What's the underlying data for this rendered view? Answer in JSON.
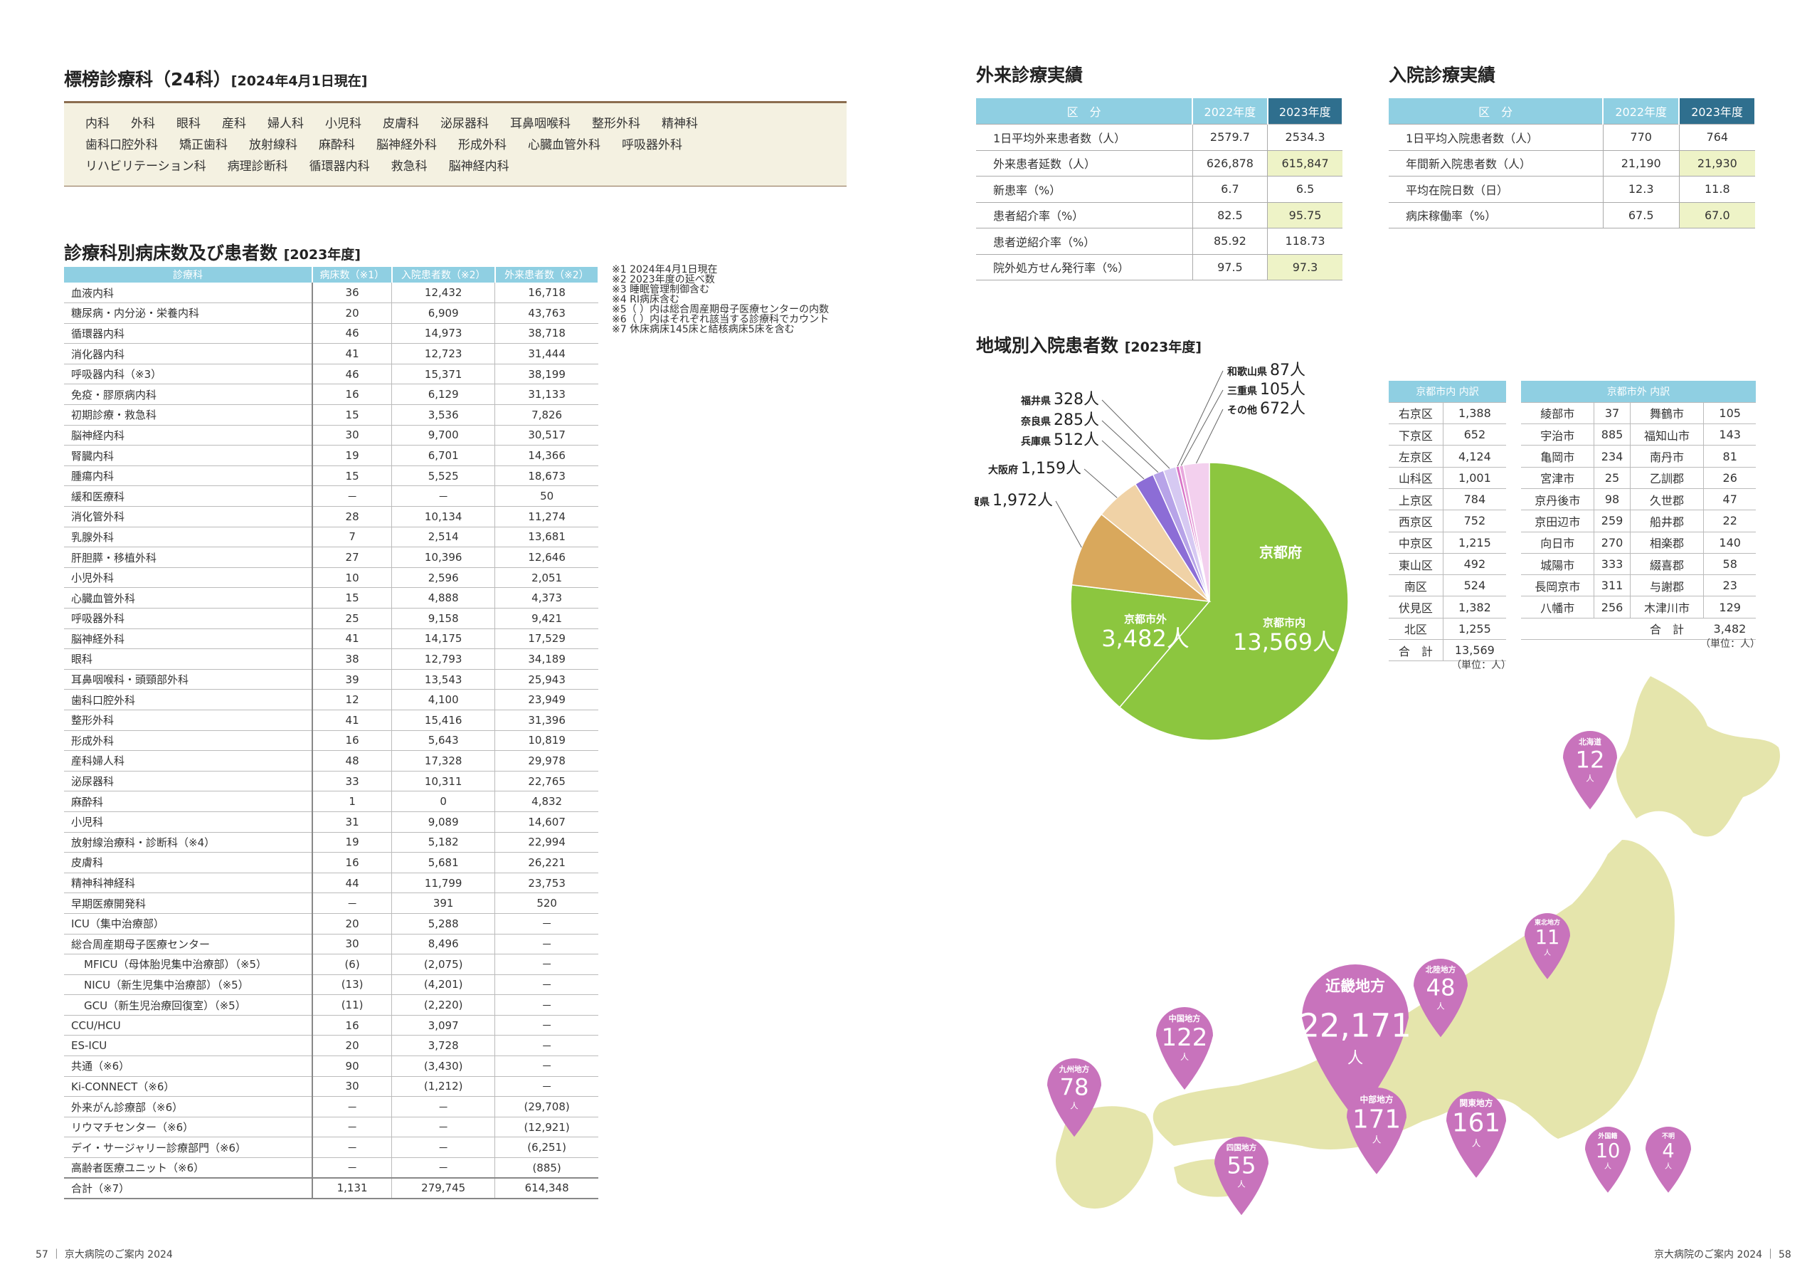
{
  "sec1": {
    "title": "標榜診療科（24科）",
    "note": "[2024年4月1日現在]"
  },
  "departments": [
    [
      "内科",
      "外科",
      "眼科",
      "産科",
      "婦人科",
      "小児科",
      "皮膚科",
      "泌尿器科",
      "耳鼻咽喉科",
      "整形外科",
      "精神科"
    ],
    [
      "歯科口腔外科",
      "矯正歯科",
      "放射線科",
      "麻酔科",
      "脳神経外科",
      "形成外科",
      "心臓血管外科",
      "呼吸器外科"
    ],
    [
      "リハビリテーション科",
      "病理診断科",
      "循環器内科",
      "救急科",
      "脳神経内科"
    ]
  ],
  "sec2": {
    "title": "診療科別病床数及び患者数",
    "note": "[2023年度]"
  },
  "dept_table": {
    "headers": [
      "診療科",
      "病床数（※1）",
      "入院患者数（※2）",
      "外来患者数（※2）"
    ],
    "rows": [
      [
        "血液内科",
        "36",
        "12,432",
        "16,718"
      ],
      [
        "糖尿病・内分泌・栄養内科",
        "20",
        "6,909",
        "43,763"
      ],
      [
        "循環器内科",
        "46",
        "14,973",
        "38,718"
      ],
      [
        "消化器内科",
        "41",
        "12,723",
        "31,444"
      ],
      [
        "呼吸器内科（※3）",
        "46",
        "15,371",
        "38,199"
      ],
      [
        "免疫・膠原病内科",
        "16",
        "6,129",
        "31,133"
      ],
      [
        "初期診療・救急科",
        "15",
        "3,536",
        "7,826"
      ],
      [
        "脳神経内科",
        "30",
        "9,700",
        "30,517"
      ],
      [
        "腎臓内科",
        "19",
        "6,701",
        "14,366"
      ],
      [
        "腫瘍内科",
        "15",
        "5,525",
        "18,673"
      ],
      [
        "緩和医療科",
        "－",
        "－",
        "50"
      ],
      [
        "消化管外科",
        "28",
        "10,134",
        "11,274"
      ],
      [
        "乳腺外科",
        "7",
        "2,514",
        "13,681"
      ],
      [
        "肝胆膵・移植外科",
        "27",
        "10,396",
        "12,646"
      ],
      [
        "小児外科",
        "10",
        "2,596",
        "2,051"
      ],
      [
        "心臓血管外科",
        "15",
        "4,888",
        "4,373"
      ],
      [
        "呼吸器外科",
        "25",
        "9,158",
        "9,421"
      ],
      [
        "脳神経外科",
        "41",
        "14,175",
        "17,529"
      ],
      [
        "眼科",
        "38",
        "12,793",
        "34,189"
      ],
      [
        "耳鼻咽喉科・頭頸部外科",
        "39",
        "13,543",
        "25,943"
      ],
      [
        "歯科口腔外科",
        "12",
        "4,100",
        "23,949"
      ],
      [
        "整形外科",
        "41",
        "15,416",
        "31,396"
      ],
      [
        "形成外科",
        "16",
        "5,643",
        "10,819"
      ],
      [
        "産科婦人科",
        "48",
        "17,328",
        "29,978"
      ],
      [
        "泌尿器科",
        "33",
        "10,311",
        "22,765"
      ],
      [
        "麻酔科",
        "1",
        "0",
        "4,832"
      ],
      [
        "小児科",
        "31",
        "9,089",
        "14,607"
      ],
      [
        "放射線治療科・診断科（※4）",
        "19",
        "5,182",
        "22,994"
      ],
      [
        "皮膚科",
        "16",
        "5,681",
        "26,221"
      ],
      [
        "精神科神経科",
        "44",
        "11,799",
        "23,753"
      ],
      [
        "早期医療開発科",
        "－",
        "391",
        "520"
      ],
      [
        "ICU（集中治療部）",
        "20",
        "5,288",
        "－"
      ],
      [
        "総合周産期母子医療センター",
        "30",
        "8,496",
        "－"
      ],
      [
        "MFICU（母体胎児集中治療部）（※5）",
        "(6)",
        "(2,075)",
        "－"
      ],
      [
        "NICU（新生児集中治療部）（※5）",
        "(13)",
        "(4,201)",
        "－"
      ],
      [
        "GCU（新生児治療回復室）（※5）",
        "(11)",
        "(2,220)",
        "－"
      ],
      [
        "CCU/HCU",
        "16",
        "3,097",
        "－"
      ],
      [
        "ES-ICU",
        "20",
        "3,728",
        "－"
      ],
      [
        "共通（※6）",
        "90",
        "(3,430)",
        "－"
      ],
      [
        "Ki-CONNECT（※6）",
        "30",
        "(1,212)",
        "－"
      ],
      [
        "外来がん診療部（※6）",
        "－",
        "－",
        "(29,708)"
      ],
      [
        "リウマチセンター（※6）",
        "－",
        "－",
        "(12,921)"
      ],
      [
        "デイ・サージャリー診療部門（※6）",
        "－",
        "－",
        "(6,251)"
      ],
      [
        "高齢者医療ユニット（※6）",
        "－",
        "－",
        "(885)"
      ]
    ],
    "total": [
      "合計（※7）",
      "1,131",
      "279,745",
      "614,348"
    ]
  },
  "notes": [
    "※1 2024年4月1日現在",
    "※2 2023年度の延べ数",
    "※3 睡眠管理制御含む",
    "※4 RI病床含む",
    "※5（ ）内は総合周産期母子医療センターの内数",
    "※6（ ）内はそれぞれ該当する診療科でカウント",
    "※7 休床病床145床と結核病床5床を含む"
  ],
  "outpatient": {
    "title": "外来診療実績",
    "headers": [
      "区　分",
      "2022年度",
      "2023年度"
    ],
    "rows": [
      [
        "1日平均外来患者数（人）",
        "2579.7",
        "2534.3"
      ],
      [
        "外来患者延数（人）",
        "626,878",
        "615,847"
      ],
      [
        "新患率（%）",
        "6.7",
        "6.5"
      ],
      [
        "患者紹介率（%）",
        "82.5",
        "95.75"
      ],
      [
        "患者逆紹介率（%）",
        "85.92",
        "118.73"
      ],
      [
        "院外処方せん発行率（%）",
        "97.5",
        "97.3"
      ]
    ]
  },
  "inpatient": {
    "title": "入院診療実績",
    "headers": [
      "区　分",
      "2022年度",
      "2023年度"
    ],
    "rows": [
      [
        "1日平均入院患者数（人）",
        "770",
        "764"
      ],
      [
        "年間新入院患者数（人）",
        "21,190",
        "21,930"
      ],
      [
        "平均在院日数（日）",
        "12.3",
        "11.8"
      ],
      [
        "病床稼働率（%）",
        "67.5",
        "67.0"
      ]
    ]
  },
  "region": {
    "title": "地域別入院患者数",
    "note": "[2023年度]"
  },
  "chart_data": {
    "type": "pie",
    "slices": [
      {
        "label": "京都府",
        "sub": "京都市内",
        "value": 13569,
        "text": "13,569人",
        "color": "#8cc63f"
      },
      {
        "label": "京都府",
        "sub": "京都市外",
        "value": 3482,
        "text": "3,482人",
        "color": "#8cc63f"
      },
      {
        "label": "滋賀県",
        "value": 1972,
        "text": "1,972人",
        "color": "#d9a85c"
      },
      {
        "label": "大阪府",
        "value": 1159,
        "text": "1,159人",
        "color": "#f0d2a6"
      },
      {
        "label": "兵庫県",
        "value": 512,
        "text": "512人",
        "color": "#8c6dd6"
      },
      {
        "label": "奈良県",
        "value": 285,
        "text": "285人",
        "color": "#b7a3e8"
      },
      {
        "label": "福井県",
        "value": 328,
        "text": "328人",
        "color": "#d6c9f2"
      },
      {
        "label": "和歌山県",
        "value": 87,
        "text": "87人",
        "color": "#d873c6"
      },
      {
        "label": "三重県",
        "value": 105,
        "text": "105人",
        "color": "#e8a6dd"
      },
      {
        "label": "その他",
        "value": 672,
        "text": "672人",
        "color": "#f3d0ee"
      }
    ],
    "center_label": "京都府"
  },
  "kyoto_city": {
    "header": "京都市内 内訳",
    "rows": [
      [
        "右京区",
        "1,388"
      ],
      [
        "下京区",
        "652"
      ],
      [
        "左京区",
        "4,124"
      ],
      [
        "山科区",
        "1,001"
      ],
      [
        "上京区",
        "784"
      ],
      [
        "西京区",
        "752"
      ],
      [
        "中京区",
        "1,215"
      ],
      [
        "東山区",
        "492"
      ],
      [
        "南区",
        "524"
      ],
      [
        "伏見区",
        "1,382"
      ],
      [
        "北区",
        "1,255"
      ]
    ],
    "total": [
      "合　計",
      "13,569"
    ],
    "unit": "（単位：人）"
  },
  "kyoto_out": {
    "header": "京都市外 内訳",
    "rows": [
      [
        "綾部市",
        "37",
        "舞鶴市",
        "105"
      ],
      [
        "宇治市",
        "885",
        "福知山市",
        "143"
      ],
      [
        "亀岡市",
        "234",
        "南丹市",
        "81"
      ],
      [
        "宮津市",
        "25",
        "乙訓郡",
        "26"
      ],
      [
        "京丹後市",
        "98",
        "久世郡",
        "47"
      ],
      [
        "京田辺市",
        "259",
        "船井郡",
        "22"
      ],
      [
        "向日市",
        "270",
        "相楽郡",
        "140"
      ],
      [
        "城陽市",
        "333",
        "綴喜郡",
        "58"
      ],
      [
        "長岡京市",
        "311",
        "与謝郡",
        "23"
      ],
      [
        "八幡市",
        "256",
        "木津川市",
        "129"
      ]
    ],
    "total": [
      "合　計",
      "3,482"
    ],
    "unit": "（単位：人）"
  },
  "map_pins": [
    {
      "label": "北海道",
      "value": "12",
      "color": "#c873bc"
    },
    {
      "label": "東北地方",
      "value": "11",
      "color": "#c873bc"
    },
    {
      "label": "北陸地方",
      "value": "48",
      "color": "#c873bc"
    },
    {
      "label": "近畿地方",
      "value": "22,171",
      "color": "#c873bc"
    },
    {
      "label": "中国地方",
      "value": "122",
      "color": "#c873bc"
    },
    {
      "label": "九州地方",
      "value": "78",
      "color": "#c873bc"
    },
    {
      "label": "中部地方",
      "value": "171",
      "color": "#c873bc"
    },
    {
      "label": "関東地方",
      "value": "161",
      "color": "#c873bc"
    },
    {
      "label": "四国地方",
      "value": "55",
      "color": "#c873bc"
    },
    {
      "label": "外国籍",
      "value": "10",
      "color": "#c873bc"
    },
    {
      "label": "不明",
      "value": "4",
      "color": "#c873bc"
    }
  ],
  "pin_unit": "人",
  "footer": {
    "left": "57 ｜ 京大病院のご案内 2024",
    "right": "京大病院のご案内 2024 ｜ 58"
  }
}
